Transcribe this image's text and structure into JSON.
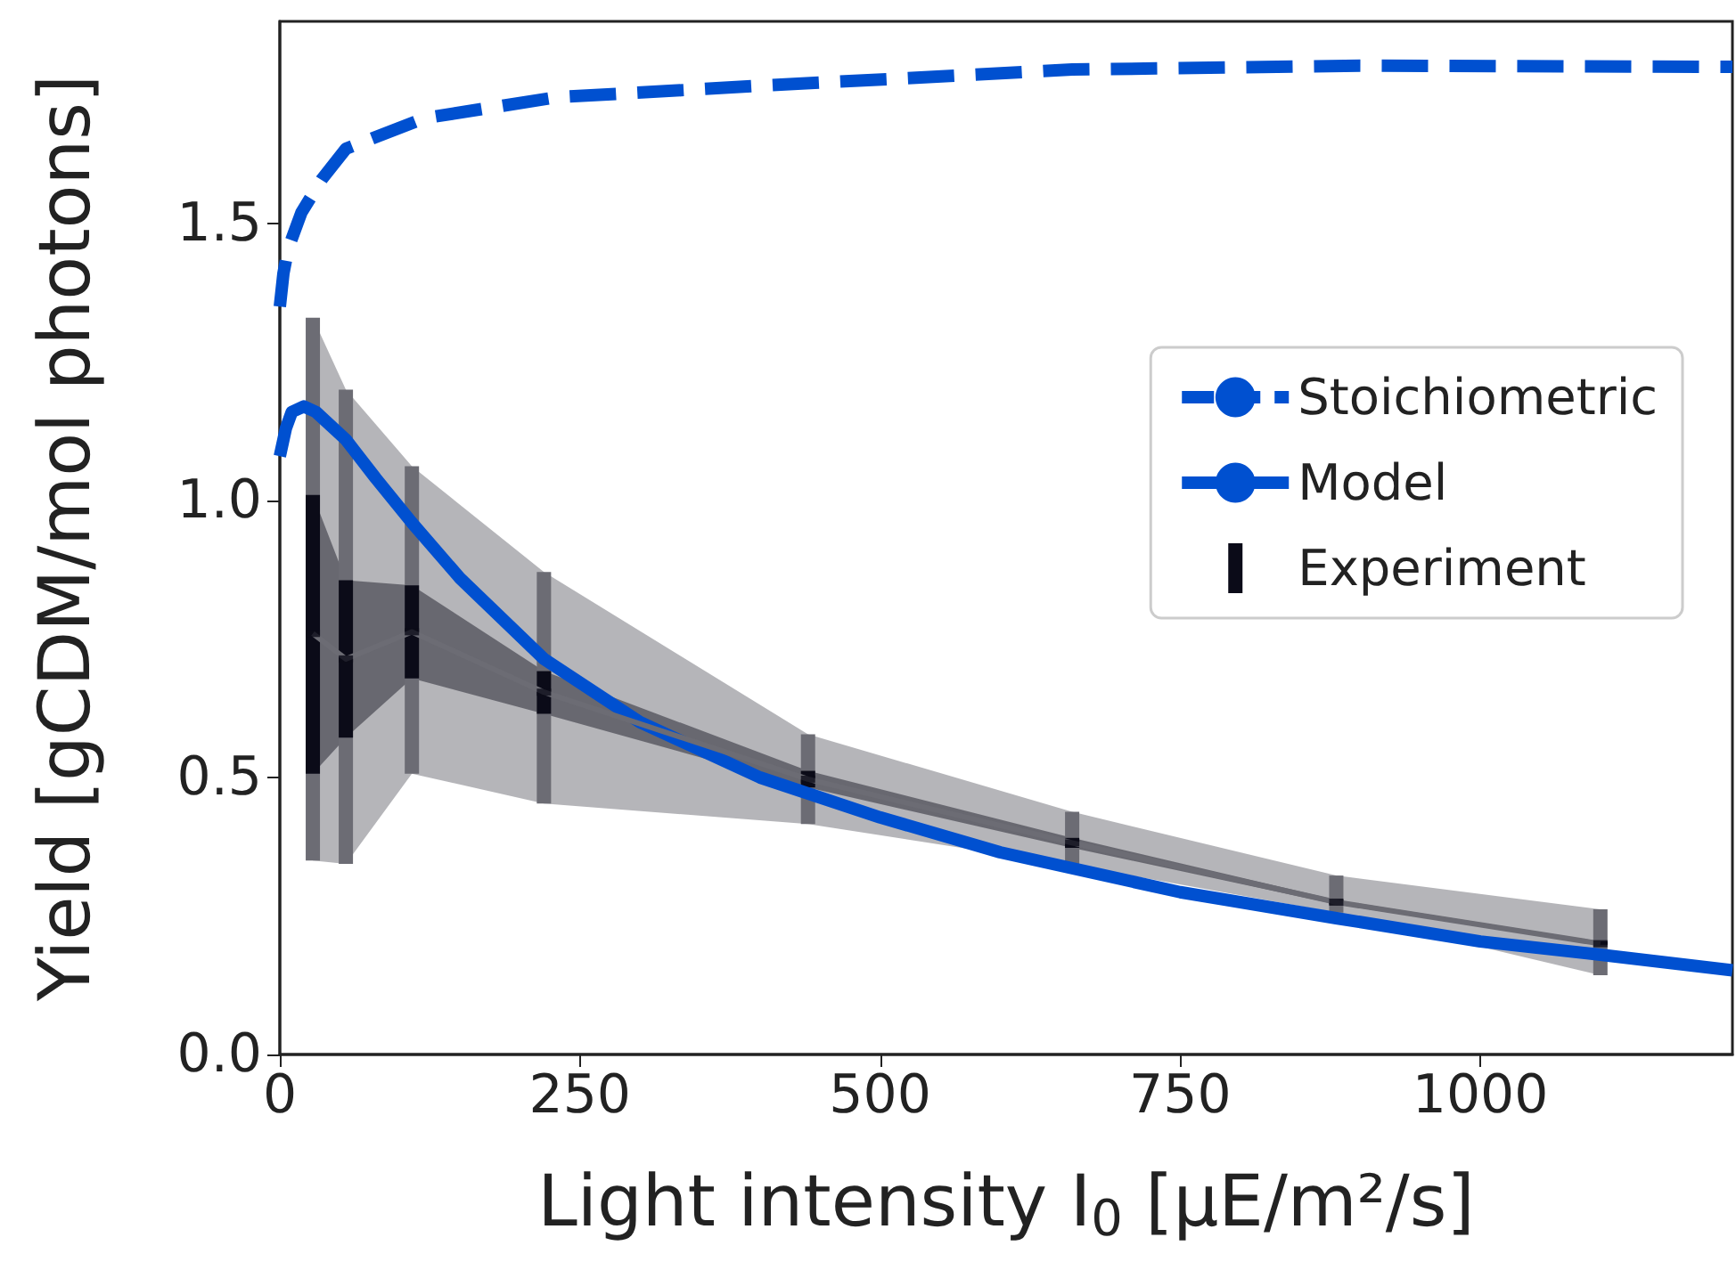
{
  "chart_data": {
    "type": "line",
    "xlabel": "Light intensity I$_{0}$ [µE/m²/s]",
    "ylabel": "Yield [gCDM/mol photons]",
    "xlim": [
      0,
      1210
    ],
    "xticks": [
      0,
      250,
      500,
      750,
      1000
    ],
    "ylim": [
      0,
      1.865
    ],
    "yticks": [
      {
        "value": 0,
        "label": "0.0"
      },
      0.5,
      {
        "value": 1,
        "label": "1.0"
      },
      1.5
    ],
    "grid": false,
    "legend": "right",
    "marker": "none",
    "series": [
      {
        "name": "Stoichiometric",
        "type": "line",
        "line_style": "dashed",
        "color": "#0050d0",
        "x": [
          0,
          3,
          7,
          18,
          35,
          55,
          120,
          230,
          410,
          660,
          900,
          1210
        ],
        "values": [
          1.35,
          1.41,
          1.455,
          1.52,
          1.58,
          1.635,
          1.69,
          1.728,
          1.75,
          1.778,
          1.785,
          1.783
        ]
      },
      {
        "name": "Model",
        "type": "line",
        "line_style": "solid",
        "color": "#0050d0",
        "x": [
          0,
          5,
          10,
          20,
          30,
          55,
          80,
          110,
          150,
          220,
          300,
          400,
          500,
          600,
          750,
          880,
          1000,
          1100,
          1210
        ],
        "values": [
          1.08,
          1.13,
          1.16,
          1.17,
          1.16,
          1.11,
          1.04,
          0.96,
          0.86,
          0.714,
          0.6,
          0.5,
          0.428,
          0.365,
          0.293,
          0.246,
          0.204,
          0.18,
          0.152
        ]
      },
      {
        "type": "line",
        "line_style": "solid",
        "color": "#6c6c74",
        "x": [
          27.5,
          55,
          110,
          220,
          440,
          660,
          880,
          1100
        ],
        "values": [
          0.76,
          0.714,
          0.763,
          0.654,
          0.497,
          0.382,
          0.275,
          0.2
        ],
        "errors": [
          [
            0.35,
            1.33
          ],
          [
            0.344,
            1.2
          ],
          [
            0.507,
            1.062
          ],
          [
            0.453,
            0.871
          ],
          [
            0.416,
            0.578
          ],
          [
            0.342,
            0.438
          ],
          [
            0.256,
            0.323
          ],
          [
            0.143,
            0.262
          ]
        ],
        "lower": [
          0.35,
          0.344,
          0.507,
          0.453,
          0.416,
          0.342,
          0.256,
          0.143
        ],
        "upper": [
          1.33,
          1.2,
          1.062,
          0.871,
          0.578,
          0.438,
          0.323,
          0.262
        ]
      },
      {
        "name": "Experiment",
        "type": "scatter",
        "marker": "square",
        "color": "#0b0b18",
        "x": [
          27.5,
          55,
          110,
          220,
          440,
          660,
          880,
          1100
        ],
        "values": [
          0.76,
          0.714,
          0.763,
          0.654,
          0.497,
          0.382,
          0.275,
          0.2
        ],
        "errors": [
          [
            0.507,
            1.01
          ],
          [
            0.572,
            0.856
          ],
          [
            0.679,
            0.847
          ],
          [
            0.615,
            0.692
          ],
          [
            0.482,
            0.512
          ],
          [
            0.373,
            0.391
          ],
          [
            0.271,
            0.279
          ],
          [
            0.198,
            0.204
          ]
        ],
        "lower": [
          0.507,
          0.572,
          0.679,
          0.615,
          0.482,
          0.373,
          0.271,
          0.198
        ],
        "upper": [
          1.01,
          0.856,
          0.847,
          0.692,
          0.512,
          0.391,
          0.279,
          0.204
        ]
      }
    ]
  }
}
